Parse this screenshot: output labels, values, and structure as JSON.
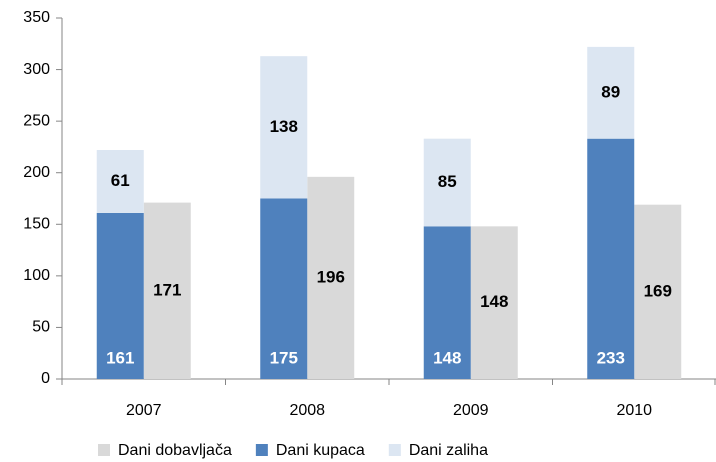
{
  "chart_data": {
    "type": "bar",
    "categories": [
      "2007",
      "2008",
      "2009",
      "2010"
    ],
    "series": [
      {
        "name": "Dani dobavljača",
        "color": "#d9d9d9",
        "values": [
          171,
          196,
          148,
          169
        ],
        "stack": "b"
      },
      {
        "name": "Dani kupaca",
        "color": "#4f81bd",
        "values": [
          161,
          175,
          148,
          233
        ],
        "stack": "a"
      },
      {
        "name": "Dani zaliha",
        "color": "#dce6f2",
        "values": [
          61,
          138,
          85,
          89
        ],
        "stack": "a"
      }
    ],
    "ylim": [
      0,
      350
    ],
    "yticks": [
      0,
      50,
      100,
      150,
      200,
      250,
      300,
      350
    ],
    "grid": false,
    "legend": "bottom"
  }
}
